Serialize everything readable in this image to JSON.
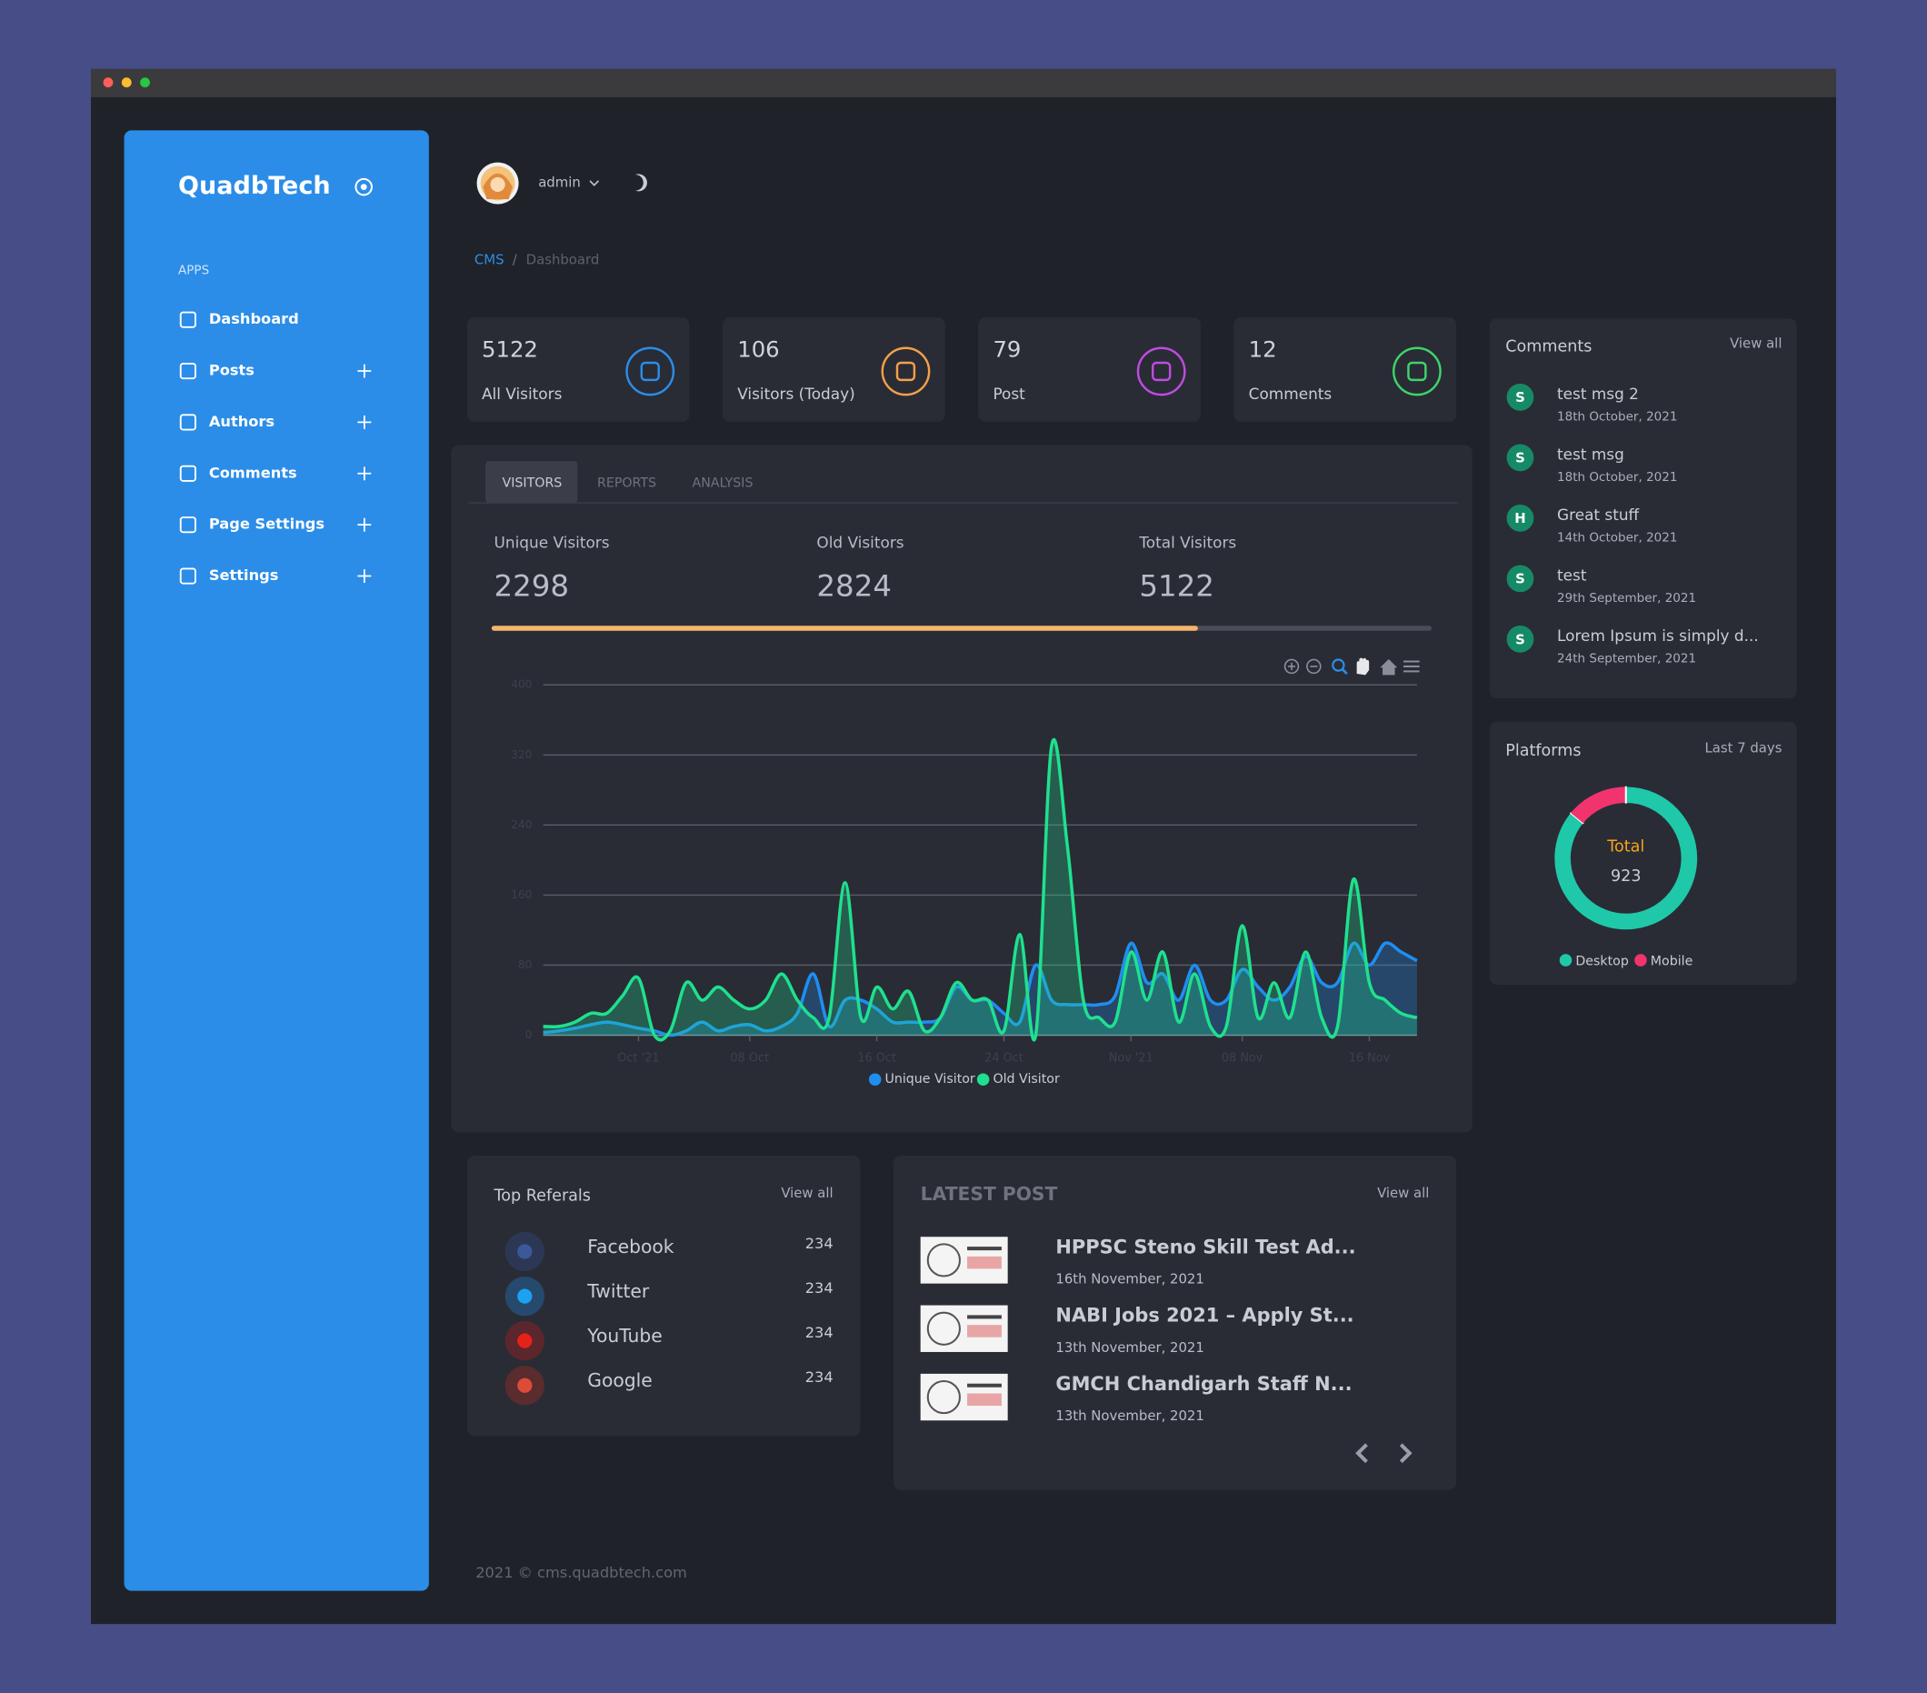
{
  "sidebar": {
    "brand": "QuadbTech",
    "section": "APPS",
    "menu": [
      "Dashboard",
      "Posts",
      "Authors",
      "Comments",
      "Page Settings",
      "Settings"
    ]
  },
  "header": {
    "user": "admin"
  },
  "breadcrumb": [
    "CMS",
    "/",
    "Dashboard"
  ],
  "stats": [
    {
      "value": 5122,
      "label": "All Visitors"
    },
    {
      "value": 106,
      "label": "Visitors (Today)"
    },
    {
      "value": 79,
      "label": "Post"
    },
    {
      "value": 12,
      "label": "Comments"
    }
  ],
  "tabs": [
    "VISITORS",
    "REPORTS",
    "ANALYSIS"
  ],
  "visitor_totals": [
    {
      "label": "Unique Visitors",
      "value": 2298
    },
    {
      "label": "Old Visitors",
      "value": 2824
    },
    {
      "label": "Total Visitors",
      "value": 5122
    }
  ],
  "progress": 75,
  "comments": {
    "title": "Comments",
    "view_all": "View all",
    "items": [
      {
        "avatar": "S",
        "text": "test msg 2",
        "date": "18th October, 2021"
      },
      {
        "avatar": "S",
        "text": "test msg",
        "date": "18th October, 2021"
      },
      {
        "avatar": "H",
        "text": "Great stuff",
        "date": "14th October, 2021"
      },
      {
        "avatar": "S",
        "text": "test",
        "date": "29th September, 2021"
      },
      {
        "avatar": "S",
        "text": "Lorem Ipsum is simply d...",
        "date": "24th September, 2021"
      }
    ]
  },
  "platforms": {
    "title": "Platforms",
    "period": "Last 7 days"
  },
  "referrals": {
    "title": "Top Referals",
    "view_all": "View all",
    "items": [
      {
        "name": "Facebook",
        "value": 234
      },
      {
        "name": "Twitter",
        "value": 234
      },
      {
        "name": "YouTube",
        "value": 234
      },
      {
        "name": "Google",
        "value": 234
      }
    ]
  },
  "latest_post": {
    "title": "LATEST POST",
    "view_all": "View all",
    "items": [
      {
        "title": "HPPSC Steno Skill Test Ad...",
        "date": "16th November, 2021"
      },
      {
        "title": "NABI Jobs 2021 – Apply St...",
        "date": "13th November, 2021"
      },
      {
        "title": "GMCH Chandigarh Staff N...",
        "date": "13th November, 2021"
      }
    ]
  },
  "footer": "2021 © cms.quadbtech.com",
  "chart_data": [
    {
      "type": "area",
      "categories": [
        null,
        null,
        null,
        null,
        null,
        null,
        "Oct '21",
        null,
        null,
        null,
        null,
        null,
        null,
        "08 Oct",
        null,
        null,
        null,
        null,
        null,
        null,
        null,
        "16 Oct",
        null,
        null,
        null,
        null,
        null,
        null,
        null,
        "24 Oct",
        null,
        null,
        null,
        null,
        null,
        null,
        null,
        "Nov '21",
        null,
        null,
        null,
        null,
        null,
        null,
        "08 Nov",
        null,
        null,
        null,
        null,
        null,
        null,
        null,
        "16 Nov",
        null,
        null,
        null
      ],
      "series": [
        {
          "name": "Unique Visitor",
          "color": "#1f8ef1",
          "values": [
            3,
            5,
            8,
            12,
            15,
            12,
            8,
            5,
            0,
            5,
            15,
            5,
            10,
            12,
            5,
            10,
            25,
            70,
            10,
            40,
            40,
            30,
            15,
            15,
            15,
            20,
            55,
            40,
            40,
            25,
            15,
            80,
            40,
            35,
            35,
            35,
            45,
            105,
            60,
            70,
            40,
            80,
            40,
            40,
            75,
            55,
            40,
            55,
            90,
            60,
            60,
            105,
            80,
            105,
            95,
            85
          ]
        },
        {
          "name": "Old Visitor",
          "color": "#1fe08e",
          "values": [
            10,
            10,
            15,
            25,
            25,
            45,
            65,
            0,
            5,
            60,
            40,
            55,
            40,
            30,
            40,
            70,
            40,
            20,
            20,
            174,
            20,
            55,
            30,
            50,
            5,
            20,
            60,
            40,
            40,
            5,
            115,
            0,
            330,
            215,
            40,
            20,
            15,
            95,
            40,
            95,
            15,
            70,
            10,
            10,
            125,
            20,
            60,
            20,
            95,
            20,
            10,
            178,
            60,
            40,
            25,
            20
          ]
        }
      ],
      "ylim": [
        0,
        400
      ],
      "yticks": [
        0,
        80,
        160,
        240,
        320,
        400
      ],
      "grid": true
    },
    {
      "type": "donut",
      "center_label": "Total",
      "total": 923,
      "categories": [
        "Desktop",
        "Mobile"
      ],
      "values": [
        793,
        130
      ],
      "colors": [
        "#1fc8a9",
        "#f2346e"
      ]
    }
  ]
}
